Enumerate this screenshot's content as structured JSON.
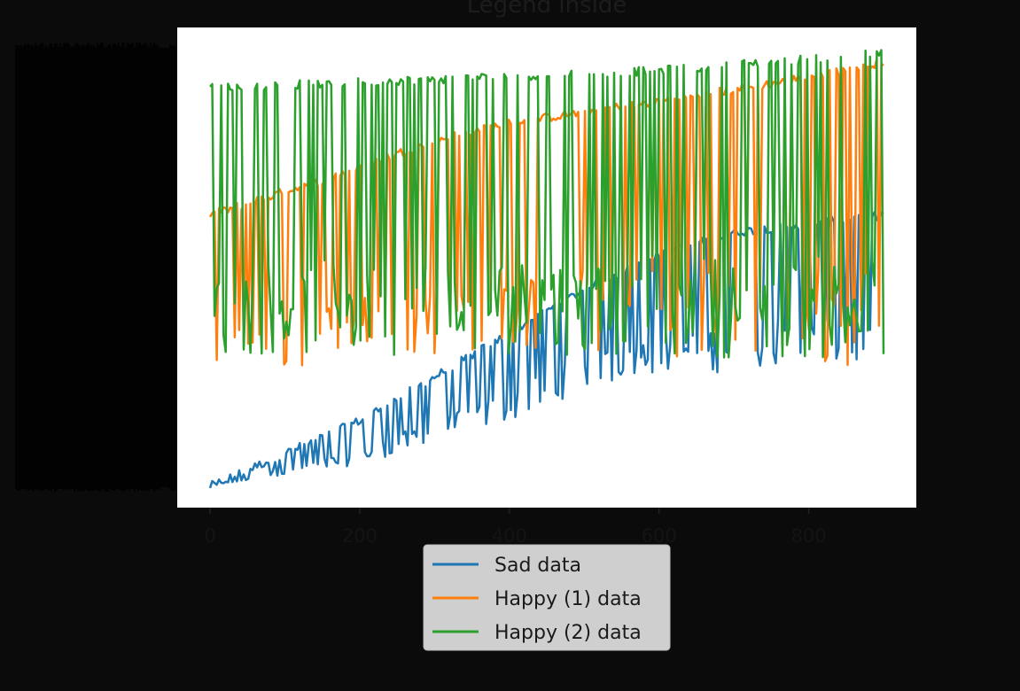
{
  "chart_data": {
    "type": "line",
    "title": "Legend inside",
    "xlabel": "",
    "ylabel": "",
    "xlim": [
      -50,
      950
    ],
    "ylim": [
      0,
      1
    ],
    "x_ticks": [
      0,
      200,
      400,
      600,
      800
    ],
    "x_tick_labels": [
      "0",
      "200",
      "400",
      "600",
      "800"
    ],
    "grid": false,
    "legend_placement": "below-center",
    "background": "#0b0b0b",
    "plot_background": "#ffffff",
    "series": [
      {
        "name": "Sad data",
        "color": "#1f77b4",
        "trend": {
          "x": [
            0,
            200,
            400,
            500,
            600,
            700,
            800,
            900
          ],
          "y": [
            0.0,
            0.15,
            0.35,
            0.45,
            0.53,
            0.58,
            0.6,
            0.62
          ]
        },
        "dip_bottom": [
          0.0,
          0.05,
          0.15,
          0.22,
          0.26,
          0.26,
          0.27,
          0.28
        ],
        "dip_probability": 0.42
      },
      {
        "name": "Happy (1) data",
        "color": "#ff7f0e",
        "trend": {
          "x": [
            0,
            150,
            300,
            400,
            600,
            750,
            900
          ],
          "y": [
            0.62,
            0.7,
            0.79,
            0.83,
            0.88,
            0.92,
            0.97
          ]
        },
        "dip_bottom": [
          0.24,
          0.28,
          0.3,
          0.31,
          0.3,
          0.28,
          0.26
        ],
        "dip_probability": 0.35
      },
      {
        "name": "Happy (2) data",
        "color": "#2ca02c",
        "trend": {
          "x": [
            0,
            300,
            600,
            900
          ],
          "y": [
            0.91,
            0.93,
            0.95,
            0.99
          ]
        },
        "dip_bottom": [
          0.3,
          0.3,
          0.3,
          0.28
        ],
        "dip_probability": 0.6
      }
    ]
  }
}
